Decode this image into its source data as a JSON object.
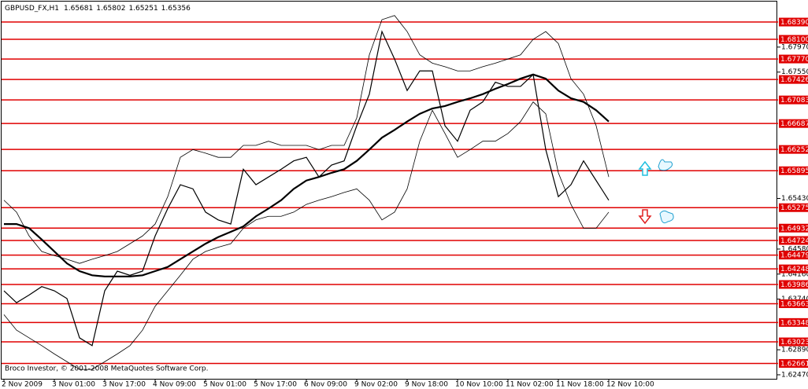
{
  "chart_data": {
    "type": "line",
    "symbol": "GBPUSD_FX,H1",
    "header_ohlc": [
      1.65681,
      1.65802,
      1.65251,
      1.65356
    ],
    "footer": "Broco Investor, © 2001-2008 MetaQuotes Software Corp.",
    "categories": [
      "2 Nov 2009",
      null,
      null,
      null,
      "3 Nov 01:00",
      null,
      null,
      null,
      "3 Nov 17:00",
      null,
      null,
      null,
      "4 Nov 09:00",
      null,
      null,
      null,
      "5 Nov 01:00",
      null,
      null,
      null,
      "5 Nov 17:00",
      null,
      null,
      null,
      "6 Nov 09:00",
      null,
      null,
      null,
      "9 Nov 02:00",
      null,
      null,
      null,
      "9 Nov 18:00",
      null,
      null,
      null,
      "10 Nov 10:00",
      null,
      null,
      null,
      "11 Nov 02:00",
      null,
      null,
      null,
      "11 Nov 18:00",
      null,
      null,
      null,
      "12 Nov 10:00"
    ],
    "series": [
      {
        "color": "#000000",
        "values": [
          1.6388,
          1.6368,
          1.6381,
          1.6395,
          1.6388,
          1.6375,
          1.6309,
          1.6296,
          1.6388,
          1.6421,
          1.6414,
          1.6421,
          1.648,
          1.6526,
          1.6566,
          1.6559,
          1.652,
          1.6507,
          1.65,
          1.6592,
          1.6566,
          1.6579,
          1.6592,
          1.6606,
          1.6612,
          1.6579,
          1.6599,
          1.6606,
          1.6665,
          1.6718,
          1.6823,
          1.6777,
          1.6724,
          1.6757,
          1.6757,
          1.6665,
          1.6639,
          1.6691,
          1.6705,
          1.6738,
          1.6731,
          1.6731,
          1.6751,
          1.6625,
          1.6546,
          1.6566,
          1.6606,
          1.6573,
          1.654
        ]
      },
      {
        "color": "#000000",
        "values": [
          1.65,
          1.65,
          1.6493,
          1.6474,
          1.6454,
          1.6434,
          1.6421,
          1.6414,
          1.6412,
          1.6412,
          1.6412,
          1.6414,
          1.6421,
          1.6428,
          1.6441,
          1.6454,
          1.6467,
          1.6478,
          1.6487,
          1.6496,
          1.6513,
          1.6526,
          1.654,
          1.6559,
          1.6573,
          1.6579,
          1.6586,
          1.6592,
          1.6606,
          1.6625,
          1.6645,
          1.6658,
          1.6672,
          1.6685,
          1.6694,
          1.6698,
          1.6705,
          1.6711,
          1.6718,
          1.6727,
          1.6735,
          1.6744,
          1.6751,
          1.6744,
          1.6724,
          1.6711,
          1.6705,
          1.6691,
          1.6672
        ]
      },
      {
        "color": "#000000",
        "values": [
          1.654,
          1.652,
          1.648,
          1.6454,
          1.6447,
          1.6441,
          1.6434,
          1.6441,
          1.6447,
          1.6454,
          1.6467,
          1.648,
          1.65,
          1.6546,
          1.6612,
          1.6625,
          1.6619,
          1.6612,
          1.6612,
          1.6632,
          1.6632,
          1.6639,
          1.6632,
          1.6632,
          1.6632,
          1.6625,
          1.6632,
          1.6632,
          1.6678,
          1.6784,
          1.6843,
          1.685,
          1.6823,
          1.6784,
          1.677,
          1.6764,
          1.6757,
          1.6757,
          1.6764,
          1.677,
          1.6777,
          1.6784,
          1.681,
          1.6823,
          1.6803,
          1.6744,
          1.6718,
          1.6665,
          1.6579
        ]
      },
      {
        "color": "#000000",
        "values": [
          1.6348,
          1.6322,
          1.6309,
          1.6296,
          1.6282,
          1.6269,
          1.6256,
          1.6256,
          1.6269,
          1.6282,
          1.6296,
          1.6322,
          1.6362,
          1.6388,
          1.6414,
          1.6441,
          1.6454,
          1.6461,
          1.6467,
          1.6493,
          1.6507,
          1.6513,
          1.6513,
          1.652,
          1.6533,
          1.654,
          1.6546,
          1.6553,
          1.6559,
          1.654,
          1.6507,
          1.652,
          1.6559,
          1.6639,
          1.6691,
          1.6652,
          1.6612,
          1.6625,
          1.6639,
          1.6639,
          1.6652,
          1.6672,
          1.6705,
          1.6685,
          1.6586,
          1.6533,
          1.6493,
          1.6493,
          1.652
        ]
      }
    ],
    "levels": [
      {
        "value": 1.6839,
        "label": "1.68390"
      },
      {
        "value": 1.681,
        "label": "1.68100"
      },
      {
        "value": 1.6777,
        "label": "1.67770"
      },
      1.67426,
      1.67083,
      1.66687,
      1.66252,
      1.65895,
      1.65275,
      1.64932,
      1.64724,
      1.64479,
      1.64248,
      1.63986,
      1.63663,
      1.63348,
      1.63023,
      1.62661
    ],
    "level_color": "#e00000",
    "ylim": [
      1.6239,
      1.6876
    ],
    "yticks": [
      {
        "value": 1.6797,
        "label": "1.67970"
      },
      {
        "value": 1.6755,
        "label": "1.67550"
      },
      {
        "value": 1.6543,
        "label": "1.65430"
      },
      {
        "value": 1.6458,
        "label": "1.64580"
      },
      {
        "value": 1.6416,
        "label": "1.64160"
      },
      {
        "value": 1.6374,
        "label": "1.63740"
      },
      {
        "value": 1.6289,
        "label": "1.62890"
      },
      {
        "value": 1.6247,
        "label": "1.62470"
      }
    ],
    "grid": false
  }
}
